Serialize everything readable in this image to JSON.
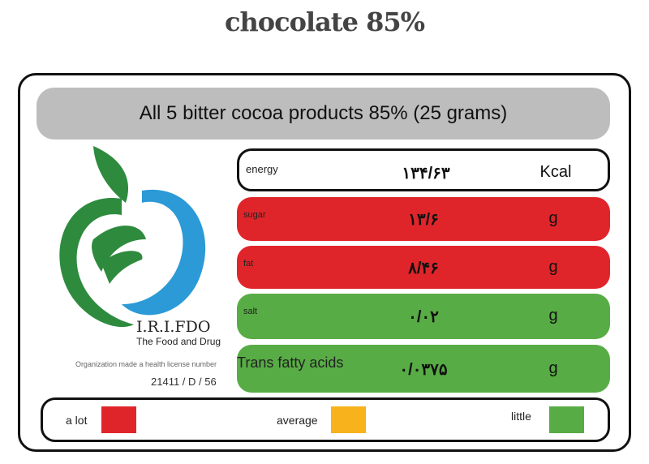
{
  "title": "chocolate 85%",
  "banner": "All 5 bitter cocoa products 85% (25 grams)",
  "rows": [
    {
      "label": "energy",
      "value": "۱۳۴/۶۳",
      "unit": "Kcal",
      "color": "#ffffff"
    },
    {
      "label": "sugar",
      "value": "۱۳/۶",
      "unit": "g",
      "color": "#e0252a"
    },
    {
      "label": "fat",
      "value": "۸/۴۶",
      "unit": "g",
      "color": "#e0252a"
    },
    {
      "label": "salt",
      "value": "۰/۰۲",
      "unit": "g",
      "color": "#58ac45"
    },
    {
      "label": "Trans fatty acids",
      "value": "۰/۰۳۷۵",
      "unit": "g",
      "color": "#58ac45"
    }
  ],
  "logo": {
    "name": "I.R.I.FDO",
    "line1": "The Food and Drug",
    "line2": "Organization made a health license number",
    "license": "21411 / D / 56"
  },
  "legend": [
    {
      "label": "a lot",
      "color": "#e0252a"
    },
    {
      "label": "average",
      "color": "#f7b21c"
    },
    {
      "label": "little",
      "color": "#58ac45"
    }
  ]
}
